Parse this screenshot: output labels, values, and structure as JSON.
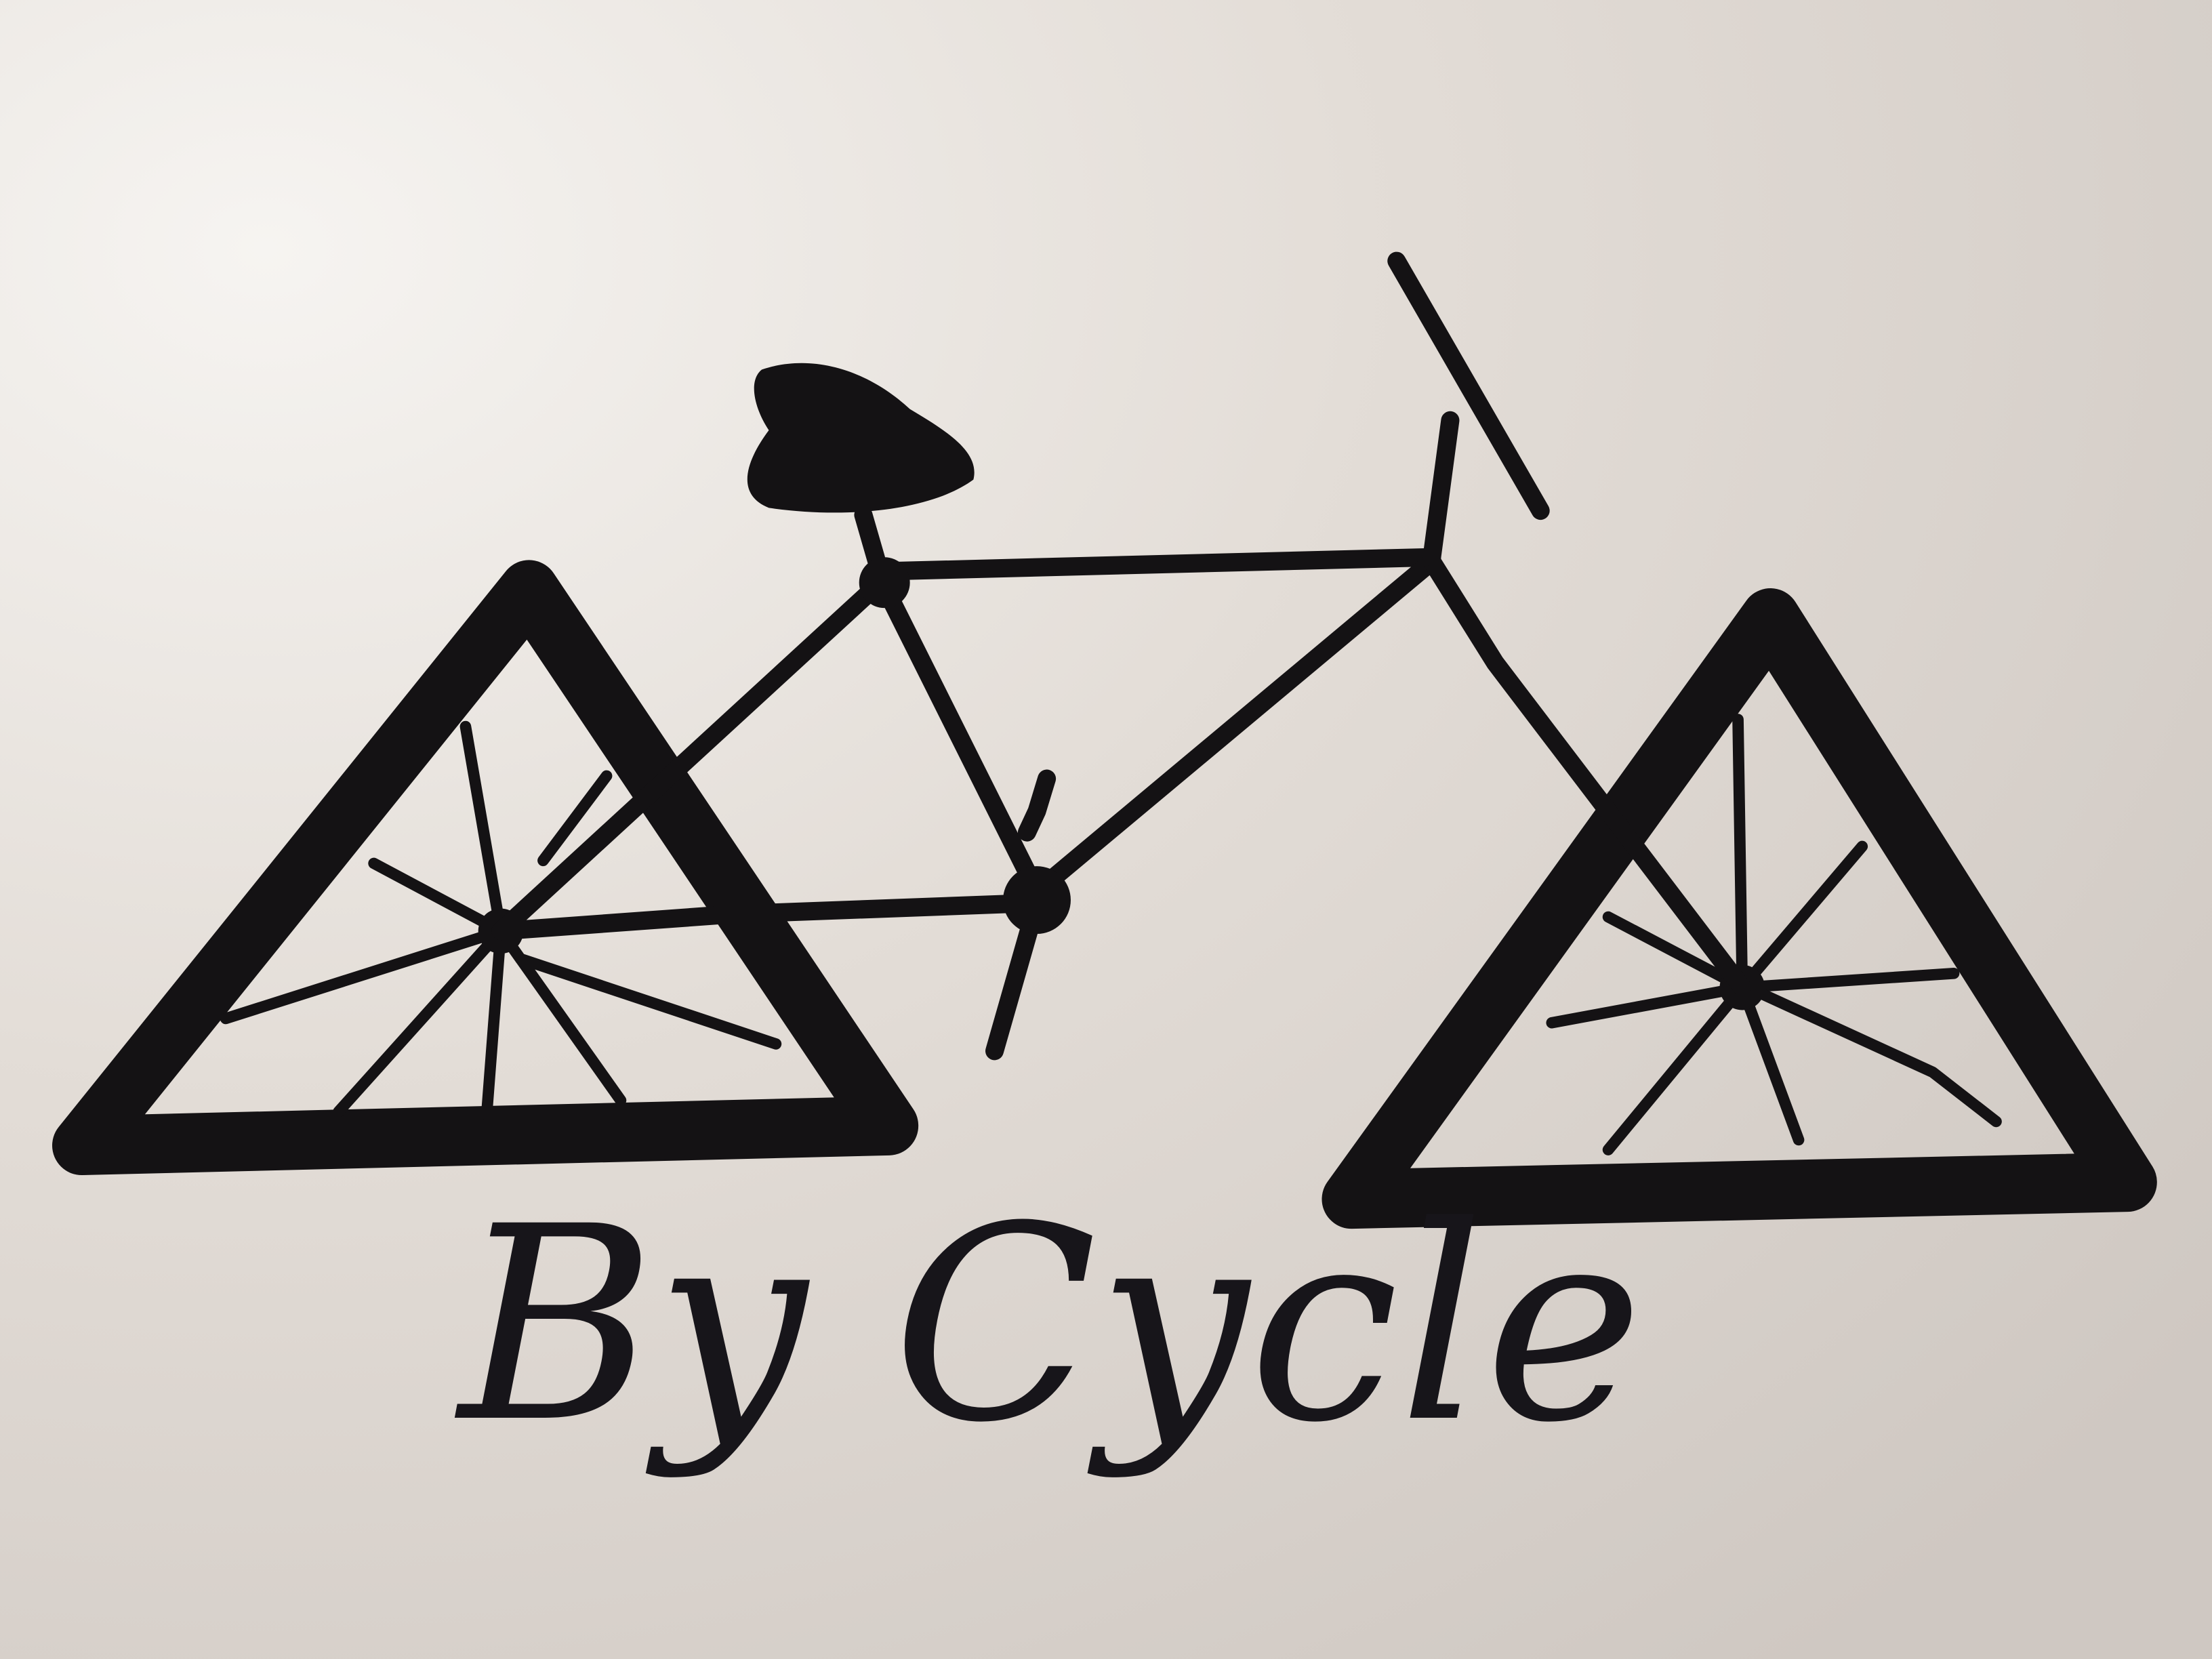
{
  "caption": {
    "text": "By Cycle"
  }
}
